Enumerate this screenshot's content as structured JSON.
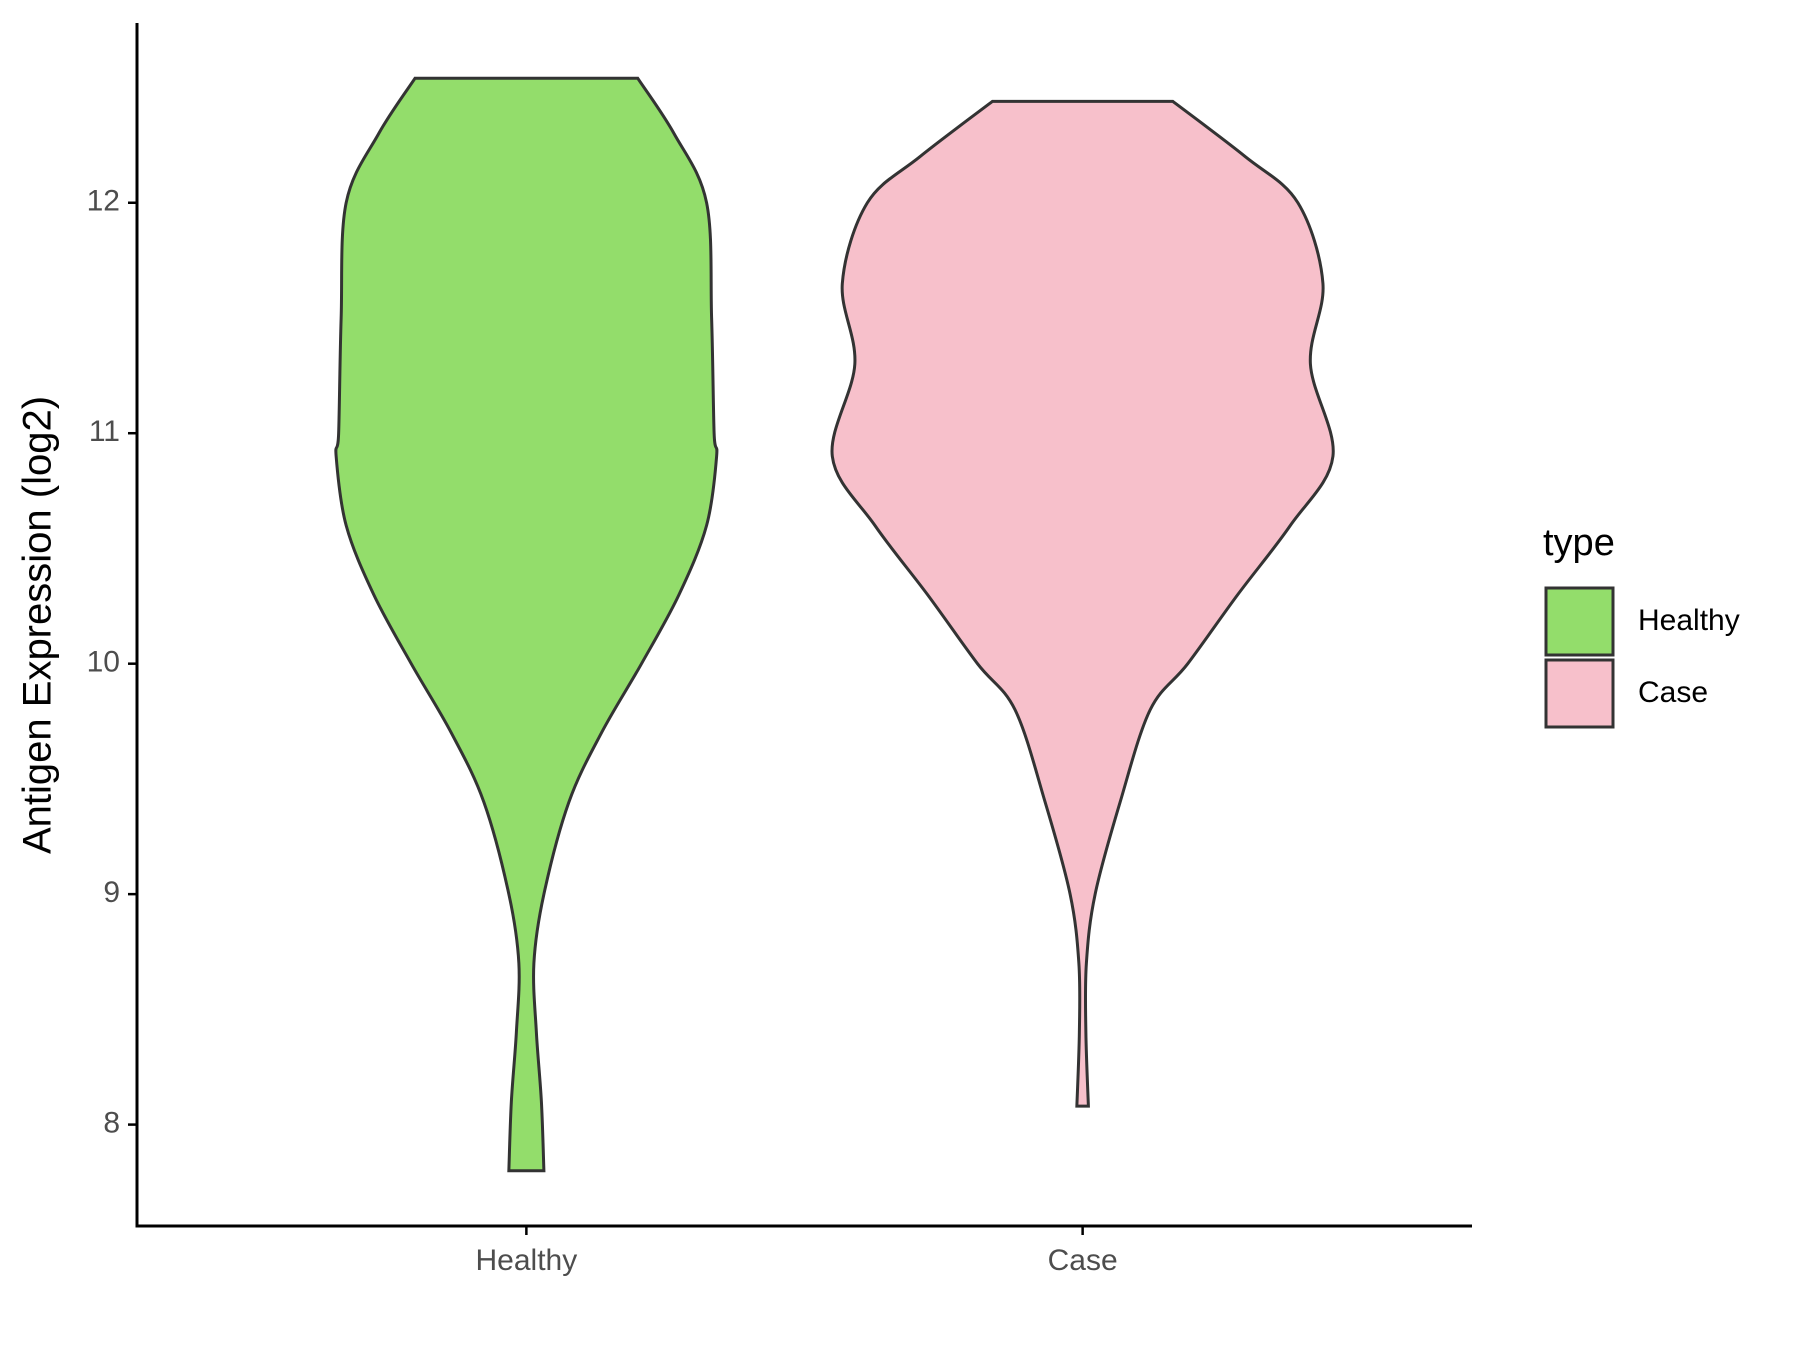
{
  "chart_data": {
    "type": "violin",
    "y_label": "Antigen Expression (log2)",
    "categories": [
      "Healthy",
      "Case"
    ],
    "ylim": [
      7.56,
      12.78
    ],
    "yticks": [
      8,
      9,
      10,
      11,
      12
    ],
    "legend_title": "type",
    "legend_position": "right",
    "series": [
      {
        "name": "Healthy",
        "color": "#93dd6b",
        "y": [
          12.54,
          12.3,
          12,
          11.5,
          11,
          10.9,
          10.6,
          10.3,
          10,
          9.7,
          9.4,
          9,
          8.7,
          8.4,
          8.1,
          7.8
        ],
        "density": [
          0.445,
          0.59,
          0.72,
          0.74,
          0.75,
          0.76,
          0.72,
          0.61,
          0.46,
          0.3,
          0.17,
          0.07,
          0.03,
          0.04,
          0.06,
          0.07
        ]
      },
      {
        "name": "Case",
        "color": "#f7c0cb",
        "y": [
          12.44,
          12.2,
          12,
          11.65,
          11.3,
          10.9,
          10.6,
          10.3,
          10,
          9.8,
          9.4,
          9,
          8.7,
          8.4,
          8.08
        ],
        "density": [
          0.36,
          0.65,
          0.86,
          0.96,
          0.91,
          1,
          0.83,
          0.62,
          0.42,
          0.27,
          0.15,
          0.05,
          0.015,
          0.013,
          0.023
        ]
      }
    ]
  }
}
